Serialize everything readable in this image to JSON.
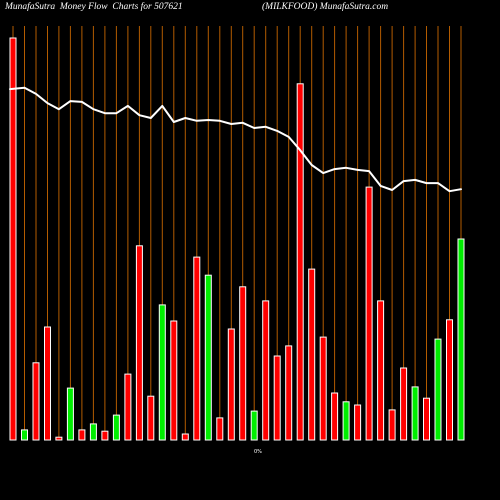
{
  "chart_data": {
    "type": "bar",
    "title": "MunafaSutra  Money Flow  Charts for 507621",
    "subtitle": "(MILKFOOD) MunafaSutra.com",
    "annotation": "0%",
    "ylim": [
      0,
      100
    ],
    "grid": true,
    "legend": "none",
    "series": [
      {
        "values": [
          100,
          2.5,
          19.2,
          28.1,
          0.7,
          12.9,
          2.5,
          4.0,
          2.2,
          6.2,
          16.4,
          48.3,
          10.9,
          33.6,
          29.6,
          1.5,
          45.5,
          41.0,
          5.5,
          27.6,
          38.1,
          7.2,
          34.6,
          20.9,
          23.4,
          88.6,
          42.5,
          25.6,
          11.7,
          9.5,
          8.7,
          62.9,
          34.6,
          7.5,
          17.9,
          13.2,
          10.4,
          25.1,
          29.9,
          50.0
        ],
        "bar_colors": [
          "red",
          "green",
          "red",
          "red",
          "red",
          "green",
          "red",
          "green",
          "red",
          "green",
          "red",
          "red",
          "red",
          "green",
          "red",
          "red",
          "red",
          "green",
          "red",
          "red",
          "red",
          "green",
          "red",
          "red",
          "red",
          "red",
          "red",
          "red",
          "red",
          "green",
          "red",
          "red",
          "red",
          "red",
          "red",
          "green",
          "red",
          "green",
          "red",
          "green"
        ]
      }
    ],
    "line": {
      "values": [
        87.3,
        87.6,
        86.1,
        83.8,
        82.3,
        84.3,
        84.1,
        82.3,
        81.3,
        81.3,
        83.1,
        80.8,
        80.1,
        83.1,
        79.1,
        80.1,
        79.4,
        79.6,
        79.4,
        78.6,
        78.9,
        77.6,
        77.9,
        76.9,
        75.4,
        72.1,
        68.4,
        66.4,
        67.4,
        67.7,
        67.2,
        66.9,
        63.2,
        62.2,
        64.4,
        64.7,
        63.9,
        63.9,
        61.9,
        62.4
      ]
    },
    "colors": {
      "red": "#ff0000",
      "green": "#00ee00",
      "bar_border": "#ffffff",
      "line": "#ffffff",
      "grid": "#b35c00",
      "text": "#ffffff",
      "background": "#000000"
    }
  }
}
